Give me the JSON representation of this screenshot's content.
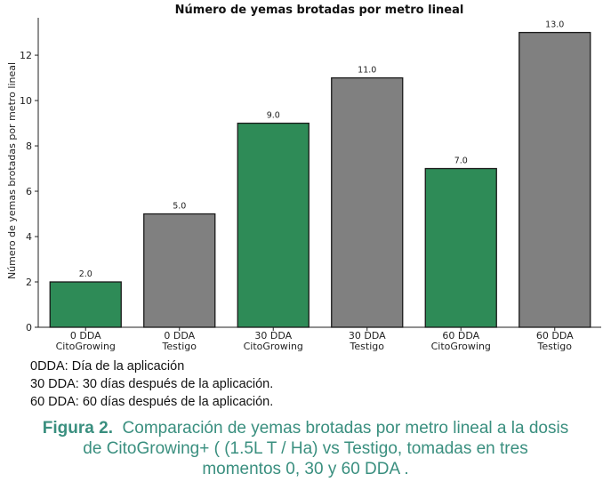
{
  "chart_data": {
    "type": "bar",
    "title": "Número de yemas brotadas por metro lineal",
    "xlabel": "",
    "ylabel": "Número de yemas brotadas por metro lineal",
    "categories": [
      [
        "0 DDA",
        "CitoGrowing"
      ],
      [
        "0 DDA",
        "Testigo"
      ],
      [
        "30 DDA",
        "CitoGrowing"
      ],
      [
        "30 DDA",
        "Testigo"
      ],
      [
        "60 DDA",
        "CitoGrowing"
      ],
      [
        "60 DDA",
        "Testigo"
      ]
    ],
    "values": [
      2.0,
      5.0,
      9.0,
      11.0,
      7.0,
      13.0
    ],
    "value_labels": [
      "2.0",
      "5.0",
      "9.0",
      "11.0",
      "7.0",
      "13.0"
    ],
    "bar_colors": [
      "#2e8b57",
      "#808080",
      "#2e8b57",
      "#808080",
      "#2e8b57",
      "#808080"
    ],
    "ylim": [
      0,
      13.65
    ],
    "yticks": [
      0,
      2,
      4,
      6,
      8,
      10,
      12
    ],
    "grid": false
  },
  "notes": [
    "0DDA: Día de la aplicación",
    "30 DDA: 30 días después  de la aplicación.",
    "60 DDA: 60 días después de la aplicación."
  ],
  "caption": {
    "label": "Figura 2.",
    "line1": "Comparación de yemas brotadas por metro lineal a la dosis",
    "line2": "de CitoGrowing+ ( (1.5L T / Ha)  vs Testigo, tomadas  en tres",
    "line3": "momentos  0, 30 y 60 DDA ."
  }
}
